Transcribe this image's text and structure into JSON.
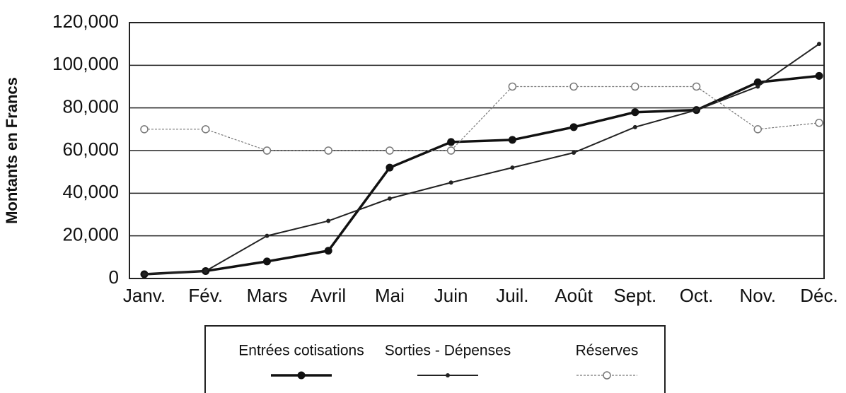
{
  "chart_data": {
    "type": "line",
    "y_axis_label": "Montants en Francs",
    "categories": [
      "Janv.",
      "Fév.",
      "Mars",
      "Avril",
      "Mai",
      "Juin",
      "Juil.",
      "Août",
      "Sept.",
      "Oct.",
      "Nov.",
      "Déc."
    ],
    "series": [
      {
        "name": "Entrées cotisations",
        "color": "#111111",
        "marker": "filled-circle",
        "values": [
          2000,
          3500,
          8000,
          13000,
          52000,
          64000,
          65000,
          71000,
          78000,
          79000,
          92000,
          95000
        ]
      },
      {
        "name": "Sorties - Dépenses",
        "color": "#222222",
        "marker": "dot",
        "values": [
          2000,
          3500,
          20000,
          27000,
          37500,
          45000,
          52000,
          59000,
          71000,
          79000,
          90000,
          110000
        ]
      },
      {
        "name": "Réserves",
        "color": "#777777",
        "marker": "open-circle",
        "values": [
          70000,
          70000,
          60000,
          60000,
          60000,
          60000,
          90000,
          90000,
          90000,
          90000,
          70000,
          73000
        ]
      }
    ],
    "ylim": [
      0,
      120000
    ],
    "yticks": [
      0,
      {
        "value": 20000,
        "label": "20,000"
      },
      {
        "value": 40000,
        "label": "40,000"
      },
      {
        "value": 60000,
        "label": "60,000"
      },
      {
        "value": 80000,
        "label": "80,000"
      },
      {
        "value": 100000,
        "label": "100,000"
      },
      {
        "value": 120000,
        "label": "120,000"
      }
    ],
    "grid": true,
    "legend": "bottom"
  }
}
